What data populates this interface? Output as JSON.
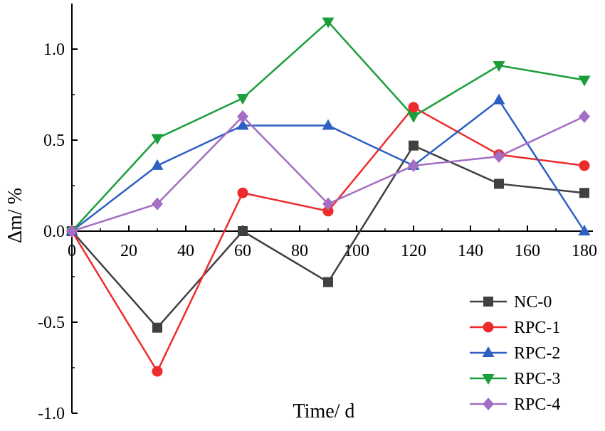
{
  "chart_data": {
    "type": "line",
    "title": "",
    "xlabel": "Time/ d",
    "ylabel": "Δm/ %",
    "xlim": [
      0,
      180
    ],
    "ylim": [
      -1.0,
      1.25
    ],
    "x": [
      0,
      30,
      60,
      90,
      120,
      150,
      180
    ],
    "xticks": [
      0,
      20,
      40,
      60,
      80,
      100,
      120,
      140,
      160,
      180
    ],
    "yticks": [
      -1.0,
      -0.5,
      0.0,
      0.5,
      1.0
    ],
    "xtick_labels": [
      "0",
      "20",
      "40",
      "60",
      "80",
      "100",
      "120",
      "140",
      "160",
      "180"
    ],
    "ytick_labels": [
      "-1.0",
      "-0.5",
      "0.0",
      "0.5",
      "1.0"
    ],
    "grid": false,
    "legend_position": "bottom-right",
    "series": [
      {
        "name": "NC-0",
        "color": "#404040",
        "marker": "square",
        "values": [
          0.0,
          -0.53,
          0.0,
          -0.28,
          0.47,
          0.26,
          0.21
        ]
      },
      {
        "name": "RPC-1",
        "color": "#ee2b2b",
        "marker": "circle",
        "values": [
          0.0,
          -0.77,
          0.21,
          0.11,
          0.68,
          0.42,
          0.36
        ]
      },
      {
        "name": "RPC-2",
        "color": "#2d5fc4",
        "marker": "triangle-up",
        "values": [
          0.0,
          0.36,
          0.58,
          0.58,
          0.36,
          0.72,
          0.0
        ]
      },
      {
        "name": "RPC-3",
        "color": "#1a9e3a",
        "marker": "triangle-down",
        "values": [
          0.0,
          0.51,
          0.73,
          1.15,
          0.63,
          0.91,
          0.83
        ]
      },
      {
        "name": "RPC-4",
        "color": "#a46ec4",
        "marker": "diamond",
        "values": [
          0.0,
          0.15,
          0.63,
          0.15,
          0.36,
          0.41,
          0.63
        ]
      }
    ]
  }
}
